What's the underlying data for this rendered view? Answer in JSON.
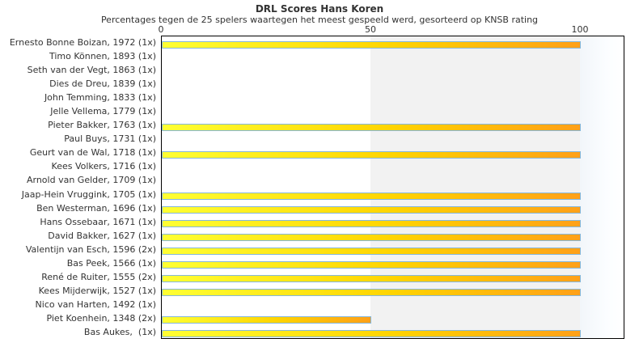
{
  "header": {
    "title": "DRL Scores Hans Koren",
    "subtitle": "Percentages tegen de 25 spelers waartegen het meest gespeeld werd, gesorteerd op KNSB rating"
  },
  "chart_data": {
    "type": "bar",
    "orientation": "horizontal",
    "title": "DRL Scores Hans Koren",
    "subtitle": "Percentages tegen de 25 spelers waartegen het meest gespeeld werd, gesorteerd op KNSB rating",
    "xlabel": "",
    "ylabel": "",
    "xlim": [
      0,
      110.6
    ],
    "xticks": [
      0,
      50,
      100
    ],
    "legend_position": "none",
    "grid": "shaded band between x=50 and x=100",
    "categories": [
      "Ernesto Bonne Boizan, 1972 (1x)",
      "Timo Können, 1893 (1x)",
      "Seth van der Vegt, 1863 (1x)",
      "Dies de Dreu, 1839 (1x)",
      "John Temming, 1833 (1x)",
      "Jelle Vellema, 1779 (1x)",
      "Pieter Bakker, 1763 (1x)",
      "Paul Buys, 1731 (1x)",
      "Geurt van de Wal, 1718 (1x)",
      "Kees Volkers, 1716 (1x)",
      "Arnold van Gelder, 1709 (1x)",
      "Jaap-Hein Vruggink, 1705 (1x)",
      "Ben Westerman, 1696 (1x)",
      "Hans Ossebaar, 1671 (1x)",
      "David Bakker, 1627 (1x)",
      "Valentijn van Esch, 1596 (2x)",
      "Bas Peek, 1566 (1x)",
      "René de Ruiter, 1555 (2x)",
      "Kees Mijderwijk, 1527 (1x)",
      "Nico van Harten, 1492 (1x)",
      "Piet Koenhein, 1348 (2x)",
      "Bas Aukes,  (1x)"
    ],
    "values": [
      100,
      0,
      0,
      0,
      0,
      0,
      100,
      0,
      100,
      0,
      0,
      100,
      100,
      100,
      100,
      100,
      100,
      100,
      100,
      0,
      50,
      100
    ],
    "colors": {
      "bar_gradient_left": "#ffff33",
      "bar_gradient_mid": "#ffd400",
      "bar_gradient_right": "#ffa018",
      "bar_border": "#85b7db",
      "shaded_band": "#f2f2f2",
      "plot_border": "#000000",
      "text": "#333333"
    }
  }
}
